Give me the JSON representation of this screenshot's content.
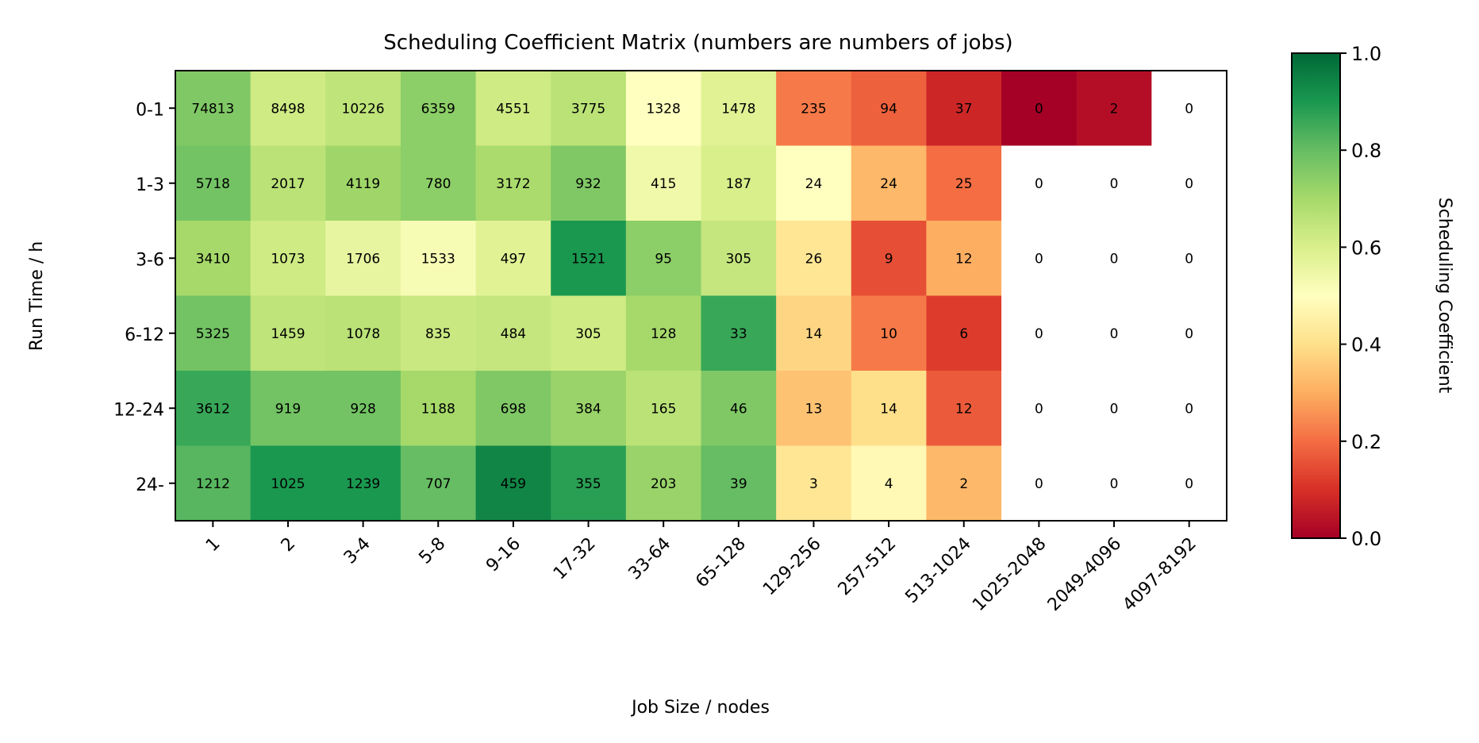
{
  "chart_data": {
    "type": "heatmap",
    "title": "Scheduling Coefficient Matrix (numbers are numbers of jobs)",
    "xlabel": "Job Size / nodes",
    "ylabel": "Run Time / h",
    "x_categories": [
      "1",
      "2",
      "3-4",
      "5-8",
      "9-16",
      "17-32",
      "33-64",
      "65-128",
      "129-256",
      "257-512",
      "513-1024",
      "1025-2048",
      "2049-4096",
      "4097-8192"
    ],
    "y_categories": [
      "0-1",
      "1-3",
      "3-6",
      "6-12",
      "12-24",
      "24-"
    ],
    "job_counts": [
      [
        "74813",
        "8498",
        "10226",
        "6359",
        "4551",
        "3775",
        "1328",
        "1478",
        "235",
        "94",
        "37",
        "0",
        "2",
        "0"
      ],
      [
        "5718",
        "2017",
        "4119",
        "780",
        "3172",
        "932",
        "415",
        "187",
        "24",
        "24",
        "25",
        "0",
        "0",
        "0"
      ],
      [
        "3410",
        "1073",
        "1706",
        "1533",
        "497",
        "1521",
        "95",
        "305",
        "26",
        "9",
        "12",
        "0",
        "0",
        "0"
      ],
      [
        "5325",
        "1459",
        "1078",
        "835",
        "484",
        "305",
        "128",
        "33",
        "14",
        "10",
        "6",
        "0",
        "0",
        "0"
      ],
      [
        "3612",
        "919",
        "928",
        "1188",
        "698",
        "384",
        "165",
        "46",
        "13",
        "14",
        "12",
        "0",
        "0",
        "0"
      ],
      [
        "1212",
        "1025",
        "1239",
        "707",
        "459",
        "355",
        "203",
        "39",
        "3",
        "4",
        "2",
        "0",
        "0",
        "0"
      ]
    ],
    "scheduling_coefficient": [
      [
        0.76,
        0.62,
        0.65,
        0.74,
        0.62,
        0.66,
        0.5,
        0.58,
        0.22,
        0.18,
        0.08,
        0.0,
        0.03,
        null
      ],
      [
        0.78,
        0.66,
        0.71,
        0.74,
        0.69,
        0.76,
        0.54,
        0.6,
        0.5,
        0.32,
        0.2,
        null,
        null,
        null
      ],
      [
        0.7,
        0.62,
        0.56,
        0.52,
        0.58,
        0.9,
        0.74,
        0.64,
        0.42,
        0.15,
        0.3,
        null,
        null,
        null
      ],
      [
        0.78,
        0.65,
        0.66,
        0.63,
        0.64,
        0.62,
        0.7,
        0.86,
        0.38,
        0.22,
        0.12,
        null,
        null,
        null
      ],
      [
        0.86,
        0.78,
        0.78,
        0.7,
        0.76,
        0.72,
        0.66,
        0.76,
        0.34,
        0.4,
        0.17,
        null,
        null,
        null
      ],
      [
        0.82,
        0.9,
        0.9,
        0.8,
        0.94,
        0.88,
        0.72,
        0.8,
        0.42,
        0.48,
        0.32,
        null,
        null,
        null
      ]
    ],
    "colorbar": {
      "label": "Scheduling Coefficient",
      "range": [
        0.0,
        1.0
      ],
      "ticks": [
        "0.0",
        "0.2",
        "0.4",
        "0.6",
        "0.8",
        "1.0"
      ],
      "colormap": "RdYlGn",
      "stops": [
        [
          0.0,
          "#a50026"
        ],
        [
          0.1,
          "#d73027"
        ],
        [
          0.2,
          "#f46d43"
        ],
        [
          0.3,
          "#fdae61"
        ],
        [
          0.4,
          "#fee08b"
        ],
        [
          0.5,
          "#ffffbf"
        ],
        [
          0.6,
          "#d9ef8b"
        ],
        [
          0.7,
          "#a6d96a"
        ],
        [
          0.8,
          "#66bd63"
        ],
        [
          0.9,
          "#1a9850"
        ],
        [
          1.0,
          "#006837"
        ]
      ]
    },
    "grid": false
  }
}
